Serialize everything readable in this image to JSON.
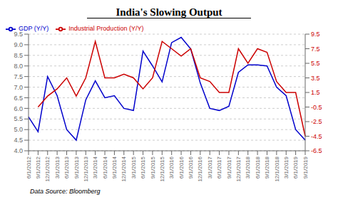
{
  "chart_data": {
    "type": "line",
    "title": "India's Slowing Output",
    "annotations": [
      "Data Source: Bloomberg"
    ],
    "categories": [
      "6/1/2012",
      "9/1/2012",
      "12/1/2012",
      "3/1/2013",
      "6/1/2013",
      "9/1/2013",
      "12/1/2013",
      "3/1/2014",
      "6/1/2014",
      "9/1/2014",
      "12/1/2014",
      "3/1/2015",
      "6/1/2015",
      "9/1/2015",
      "12/1/2015",
      "3/1/2016",
      "6/1/2016",
      "9/1/2016",
      "12/1/2016",
      "3/1/2017",
      "6/1/2017",
      "9/1/2017",
      "12/1/2017",
      "3/1/2018",
      "6/1/2018",
      "9/1/2018",
      "12/1/2018",
      "3/1/2019",
      "6/1/2019",
      "9/1/2019"
    ],
    "series": [
      {
        "name": "GDP (Y/Y)",
        "color": "#0000cc",
        "values": [
          5.6,
          4.9,
          7.5,
          6.6,
          5.0,
          4.5,
          6.4,
          7.3,
          6.5,
          6.6,
          6.0,
          5.9,
          8.7,
          8.0,
          7.25,
          9.1,
          9.35,
          8.8,
          7.2,
          6.0,
          5.9,
          6.1,
          7.7,
          8.05,
          8.05,
          8.0,
          7.0,
          6.6,
          5.0,
          4.5
        ]
      },
      {
        "name": "Industrial Production (Y/Y)",
        "color": "#cc0000",
        "axis": "y2",
        "values": [
          null,
          -0.5,
          1.0,
          2.0,
          3.5,
          1.0,
          3.5,
          8.5,
          3.5,
          3.5,
          4.0,
          3.5,
          2.0,
          3.5,
          8.5,
          7.5,
          6.5,
          7.5,
          3.5,
          3.0,
          1.5,
          1.5,
          7.5,
          5.5,
          7.5,
          7.0,
          3.0,
          1.5,
          1.5,
          -4.5
        ]
      }
    ],
    "ylim": [
      4.0,
      9.5
    ],
    "yticks": [
      {
        "value": 4.0,
        "label": "4.0"
      },
      4.5,
      {
        "value": 5.0,
        "label": "5.0"
      },
      5.5,
      {
        "value": 6.0,
        "label": "6.0"
      },
      6.5,
      {
        "value": 7.0,
        "label": "7.0"
      },
      7.5,
      {
        "value": 8.0,
        "label": "8.0"
      },
      8.5,
      {
        "value": 9.0,
        "label": "9.0"
      },
      9.5
    ],
    "y2lim": [
      -6.5,
      9.5
    ],
    "y2ticks": [
      -6.5,
      -4.5,
      -2.5,
      -0.5,
      1.5,
      3.5,
      5.5,
      7.5,
      9.5
    ],
    "grid": true,
    "legend": "upper left"
  }
}
